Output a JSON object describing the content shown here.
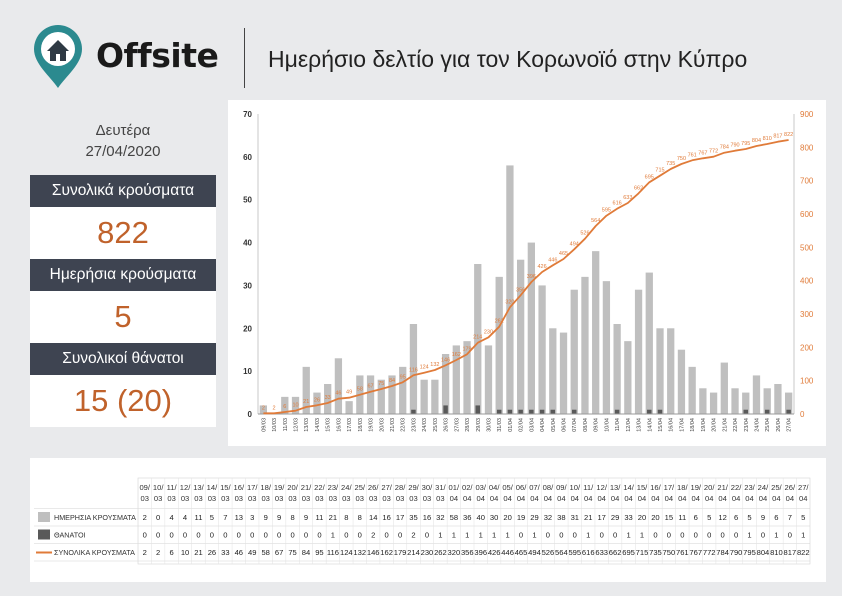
{
  "header": {
    "brand": "Offsite",
    "title": "Ημερήσιο δελτίο για τον Κορωνοϊό στην Κύπρο"
  },
  "stats": {
    "day": "Δευτέρα",
    "date": "27/04/2020",
    "total_cases_label": "Συνολικά κρούσματα",
    "total_cases_value": "822",
    "daily_cases_label": "Ημερήσια κρούσματα",
    "daily_cases_value": "5",
    "total_deaths_label": "Συνολικοί θάνατοι",
    "total_deaths_value": "15 (20)"
  },
  "colors": {
    "bars": "#bfbfbf",
    "deaths": "#595959",
    "cumulative_line": "#e07b39",
    "stat_label_bg": "#3e4451",
    "stat_value": "#c0622b"
  },
  "chart_data": {
    "type": "bar",
    "x": [
      "09/03",
      "10/03",
      "11/03",
      "12/03",
      "13/03",
      "14/03",
      "15/03",
      "16/03",
      "17/03",
      "18/03",
      "19/03",
      "20/03",
      "21/03",
      "22/03",
      "23/03",
      "24/03",
      "25/03",
      "26/03",
      "27/03",
      "28/03",
      "29/03",
      "30/03",
      "31/03",
      "01/04",
      "02/04",
      "03/04",
      "04/04",
      "05/04",
      "06/04",
      "07/04",
      "08/04",
      "09/04",
      "10/04",
      "11/04",
      "12/04",
      "13/04",
      "14/04",
      "15/04",
      "16/04",
      "17/04",
      "18/04",
      "19/04",
      "20/04",
      "21/04",
      "22/04",
      "23/04",
      "24/04",
      "25/04",
      "26/04",
      "27/04"
    ],
    "y_left_ticks": [
      0,
      10,
      20,
      30,
      40,
      50,
      60,
      70
    ],
    "y_right_ticks": [
      0,
      100,
      200,
      300,
      400,
      500,
      600,
      700,
      800,
      900
    ],
    "ylim_left": [
      0,
      70
    ],
    "ylim_right": [
      0,
      900
    ],
    "grid": false,
    "series": [
      {
        "name": "ΗΜΕΡΗΣΙΑ ΚΡΟΥΣΜΑΤΑ",
        "type": "bar",
        "axis": "left",
        "values": [
          2,
          0,
          4,
          4,
          11,
          5,
          7,
          13,
          3,
          9,
          9,
          8,
          9,
          11,
          21,
          8,
          8,
          14,
          16,
          17,
          35,
          16,
          32,
          58,
          36,
          40,
          30,
          20,
          19,
          29,
          32,
          38,
          31,
          21,
          17,
          29,
          33,
          20,
          20,
          15,
          11,
          6,
          5,
          12,
          6,
          5,
          9,
          6,
          7,
          5
        ]
      },
      {
        "name": "ΘΑΝΑΤΟΙ",
        "type": "bar",
        "axis": "left",
        "values": [
          0,
          0,
          0,
          0,
          0,
          0,
          0,
          0,
          0,
          0,
          0,
          0,
          0,
          0,
          1,
          0,
          0,
          2,
          0,
          0,
          2,
          0,
          1,
          1,
          1,
          1,
          1,
          1,
          0,
          1,
          0,
          0,
          0,
          1,
          0,
          0,
          1,
          1,
          0,
          0,
          0,
          0,
          0,
          0,
          0,
          1,
          0,
          1,
          0,
          1
        ]
      },
      {
        "name": "ΣΥΝΟΛΙΚΑ ΚΡΟΥΣΜΑΤΑ",
        "type": "line",
        "axis": "right",
        "values": [
          2,
          2,
          6,
          10,
          21,
          26,
          33,
          46,
          49,
          58,
          67,
          75,
          84,
          95,
          116,
          124,
          132,
          146,
          162,
          179,
          214,
          230,
          262,
          320,
          356,
          396,
          426,
          446,
          465,
          494,
          526,
          564,
          595,
          616,
          633,
          662,
          695,
          715,
          735,
          750,
          761,
          767,
          772,
          784,
          790,
          795,
          804,
          810,
          817,
          822
        ]
      }
    ]
  }
}
